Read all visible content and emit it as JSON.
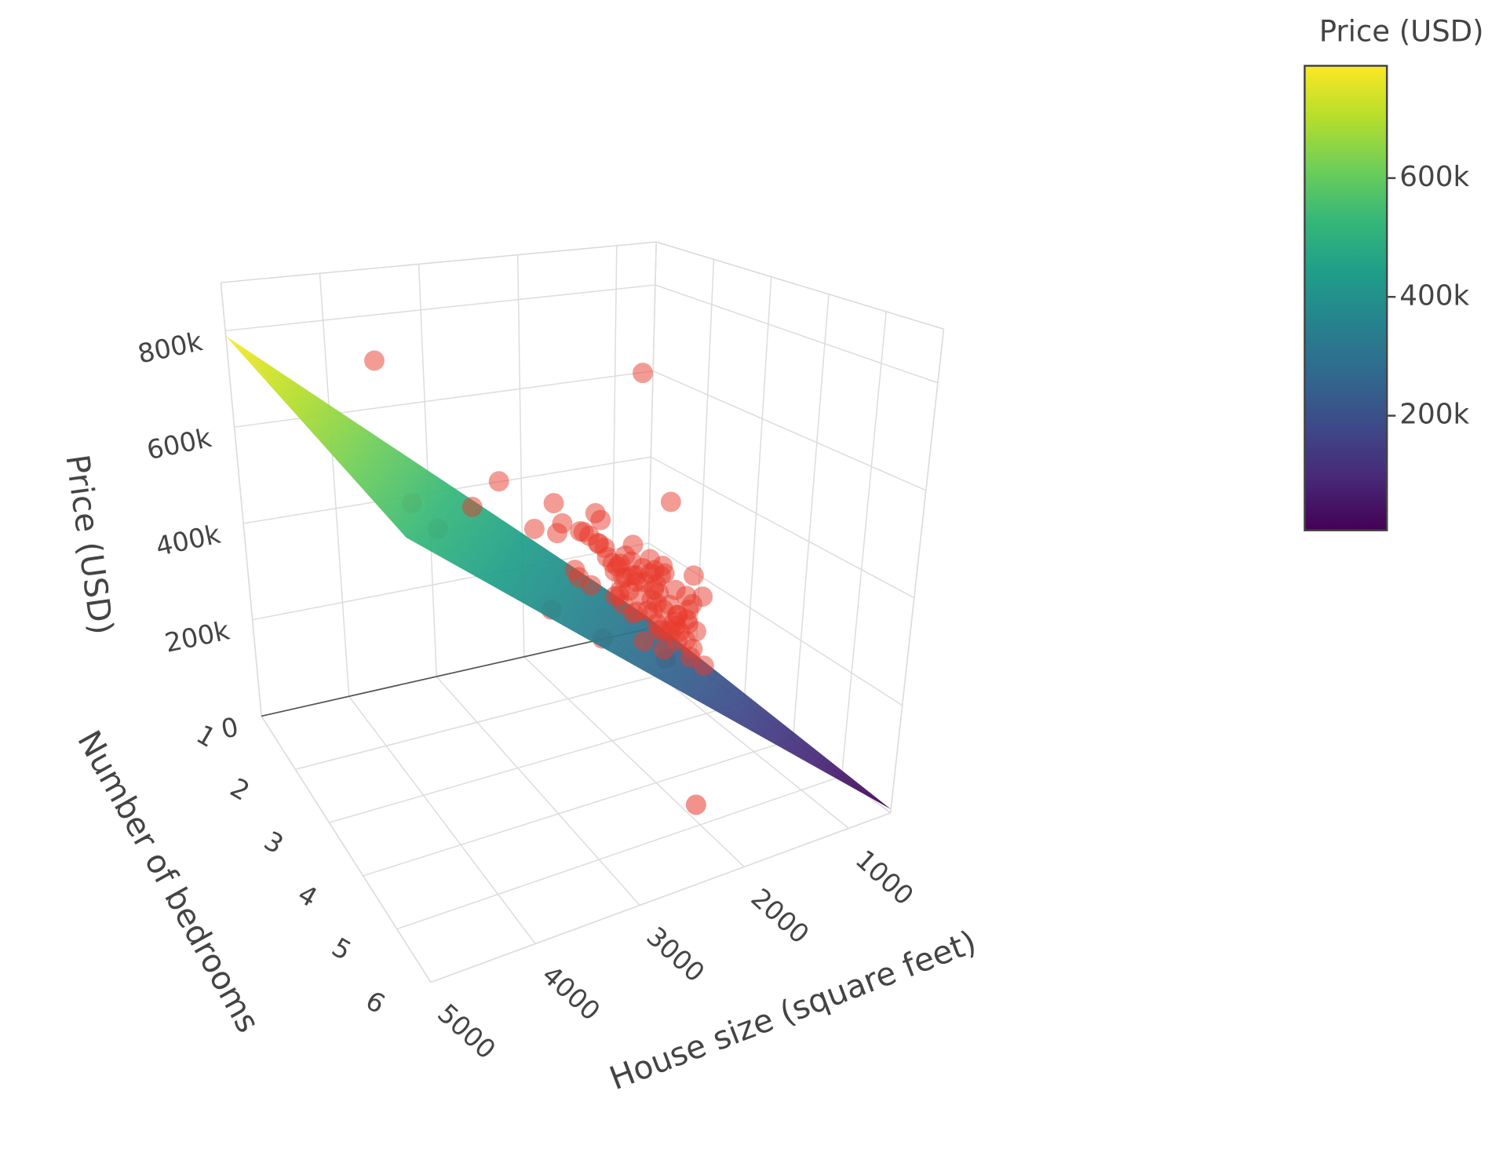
{
  "chart_data": {
    "type": "scatter3d",
    "x_title": "House size (square feet)",
    "y_title": "Number of bedrooms",
    "z_title": "Price (USD)",
    "xlim": [
      600,
      5000
    ],
    "xticks": [
      1000,
      2000,
      3000,
      4000,
      5000
    ],
    "ylim": [
      1,
      6
    ],
    "yticks": [
      1,
      2,
      3,
      4,
      5,
      6
    ],
    "zlim": [
      0,
      900000
    ],
    "zticks": [
      0,
      {
        "value": 200000,
        "label": "200k"
      },
      {
        "value": 400000,
        "label": "400k"
      },
      {
        "value": 600000,
        "label": "600k"
      },
      {
        "value": 800000,
        "label": "800k"
      }
    ],
    "grid": true,
    "series": [
      {
        "type": "scatter3d",
        "color": "#e8392b",
        "x": [
          2104,
          1600,
          2400,
          1416,
          3000,
          1985,
          1534,
          1427,
          1380,
          1494,
          1940,
          2000,
          1890,
          1268,
          2300,
          1320,
          1236,
          2609,
          3031,
          1767,
          1888,
          1604,
          1962,
          1100,
          1458,
          2526,
          2200,
          2637,
          1839,
          1000,
          2040,
          3137,
          1811,
          1437,
          1239,
          2132,
          2162,
          1664,
          2238,
          2567,
          1200,
          852,
          1852,
          1203,
          1766,
          3900,
          2050,
          1550,
          1700,
          1750,
          1820,
          1900,
          1650,
          1480,
          1350,
          1580,
          1720,
          1980,
          2080,
          1450,
          1620,
          1780,
          1680,
          1520,
          1400,
          1300,
          2250,
          2350,
          2450,
          1150,
          1050,
          1850,
          1950,
          1700,
          1600,
          1560,
          1640,
          1740,
          1840,
          1940,
          2700,
          2800,
          3400,
          4100,
          3600,
          1250,
          1340,
          1910,
          2010,
          1690
        ],
        "y": [
          3,
          3,
          3,
          2,
          4,
          4,
          3,
          3,
          3,
          3,
          4,
          3,
          3,
          3,
          4,
          2,
          3,
          4,
          4,
          3,
          2,
          3,
          4,
          3,
          3,
          3,
          3,
          3,
          2,
          1,
          4,
          3,
          4,
          3,
          3,
          4,
          4,
          2,
          3,
          4,
          3,
          2,
          4,
          3,
          3,
          2,
          5,
          3,
          3,
          4,
          3,
          4,
          3,
          2,
          3,
          3,
          3,
          4,
          3,
          2,
          3,
          3,
          4,
          3,
          2,
          2,
          4,
          3,
          4,
          3,
          2,
          3,
          3,
          4,
          3,
          4,
          3,
          3,
          4,
          3,
          4,
          3,
          3,
          4,
          2,
          3,
          3,
          3,
          4,
          2
        ],
        "z": [
          399900,
          329900,
          369000,
          232000,
          539900,
          299900,
          314900,
          198999,
          212000,
          242500,
          239999,
          347000,
          329999,
          259900,
          449900,
          299900,
          199900,
          499998,
          599000,
          252900,
          255000,
          242900,
          259900,
          249900,
          464500,
          469000,
          475000,
          299900,
          349900,
          169900,
          314900,
          579900,
          285900,
          249900,
          229900,
          345000,
          287000,
          368500,
          329900,
          314000,
          299000,
          179900,
          299900,
          239500,
          744000,
          783000,
          41000,
          280000,
          310000,
          265000,
          330000,
          290000,
          355000,
          260000,
          225000,
          300000,
          340000,
          410000,
          380000,
          195000,
          270000,
          315000,
          245000,
          335000,
          280000,
          150000,
          420000,
          445000,
          390000,
          180000,
          160000,
          300000,
          360000,
          230000,
          290000,
          205000,
          325000,
          285000,
          320000,
          305000,
          520000,
          470000,
          540000,
          600000,
          480000,
          210000,
          170000,
          275000,
          300000,
          320000
        ]
      },
      {
        "type": "surface",
        "x": [
          600,
          5000
        ],
        "y": [
          1,
          6
        ],
        "z": [
          [
            30000,
            789000
          ],
          [
            7000,
            766000
          ]
        ],
        "colorscale": [
          "#440154",
          "#482878",
          "#3e4989",
          "#31688e",
          "#26828e",
          "#1f9e89",
          "#35b779",
          "#6ece58",
          "#b5de2b",
          "#fde725"
        ]
      }
    ],
    "colorbar": {
      "title": "Price (USD)",
      "clim": [
        7000,
        789000
      ],
      "ticks": [
        {
          "value": 200000,
          "label": "200k"
        },
        {
          "value": 400000,
          "label": "400k"
        },
        {
          "value": 600000,
          "label": "600k"
        }
      ]
    }
  }
}
